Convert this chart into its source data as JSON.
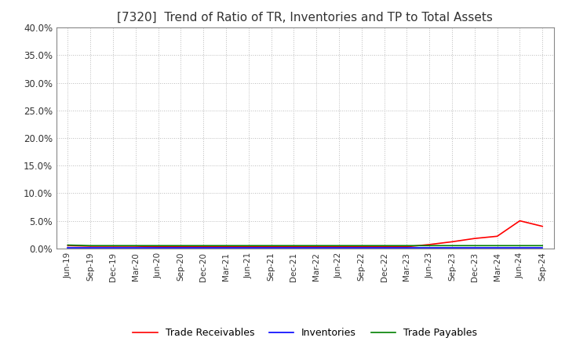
{
  "title": "[7320]  Trend of Ratio of TR, Inventories and TP to Total Assets",
  "title_fontsize": 11,
  "ylim": [
    0.0,
    0.4
  ],
  "yticks": [
    0.0,
    0.05,
    0.1,
    0.15,
    0.2,
    0.25,
    0.3,
    0.35,
    0.4
  ],
  "x_labels": [
    "Jun-19",
    "Sep-19",
    "Dec-19",
    "Mar-20",
    "Jun-20",
    "Sep-20",
    "Dec-20",
    "Mar-21",
    "Jun-21",
    "Sep-21",
    "Dec-21",
    "Mar-22",
    "Jun-22",
    "Sep-22",
    "Dec-22",
    "Mar-23",
    "Jun-23",
    "Sep-23",
    "Dec-23",
    "Mar-24",
    "Jun-24",
    "Sep-24"
  ],
  "trade_receivables": [
    0.005,
    0.004,
    0.004,
    0.004,
    0.003,
    0.003,
    0.003,
    0.003,
    0.003,
    0.003,
    0.003,
    0.003,
    0.003,
    0.003,
    0.003,
    0.003,
    0.007,
    0.012,
    0.018,
    0.022,
    0.05,
    0.04
  ],
  "inventories": [
    0.001,
    0.001,
    0.001,
    0.001,
    0.001,
    0.001,
    0.001,
    0.001,
    0.001,
    0.001,
    0.001,
    0.001,
    0.001,
    0.001,
    0.001,
    0.001,
    0.001,
    0.001,
    0.001,
    0.001,
    0.001,
    0.001
  ],
  "trade_payables": [
    0.006,
    0.005,
    0.005,
    0.005,
    0.005,
    0.005,
    0.005,
    0.005,
    0.005,
    0.005,
    0.005,
    0.005,
    0.005,
    0.005,
    0.005,
    0.005,
    0.005,
    0.005,
    0.005,
    0.005,
    0.005,
    0.005
  ],
  "tr_color": "#ff0000",
  "inv_color": "#0000ff",
  "tp_color": "#008000",
  "legend_labels": [
    "Trade Receivables",
    "Inventories",
    "Trade Payables"
  ],
  "background_color": "#ffffff",
  "grid_color": "#bbbbbb"
}
